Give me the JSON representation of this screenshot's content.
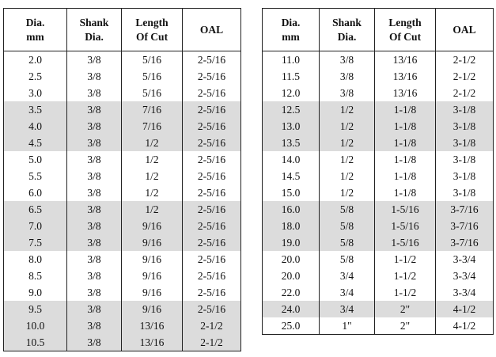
{
  "headers": {
    "dia": [
      "Dia.",
      "mm"
    ],
    "shank": [
      "Shank",
      "Dia."
    ],
    "length": [
      "Length",
      "Of Cut"
    ],
    "oal": [
      "OAL"
    ]
  },
  "left_table": {
    "rows": [
      {
        "dia": "2.0",
        "shank": "3/8",
        "length": "5/16",
        "oal": "2-5/16",
        "shaded": false
      },
      {
        "dia": "2.5",
        "shank": "3/8",
        "length": "5/16",
        "oal": "2-5/16",
        "shaded": false
      },
      {
        "dia": "3.0",
        "shank": "3/8",
        "length": "5/16",
        "oal": "2-5/16",
        "shaded": false
      },
      {
        "dia": "3.5",
        "shank": "3/8",
        "length": "7/16",
        "oal": "2-5/16",
        "shaded": true
      },
      {
        "dia": "4.0",
        "shank": "3/8",
        "length": "7/16",
        "oal": "2-5/16",
        "shaded": true
      },
      {
        "dia": "4.5",
        "shank": "3/8",
        "length": "1/2",
        "oal": "2-5/16",
        "shaded": true
      },
      {
        "dia": "5.0",
        "shank": "3/8",
        "length": "1/2",
        "oal": "2-5/16",
        "shaded": false
      },
      {
        "dia": "5.5",
        "shank": "3/8",
        "length": "1/2",
        "oal": "2-5/16",
        "shaded": false
      },
      {
        "dia": "6.0",
        "shank": "3/8",
        "length": "1/2",
        "oal": "2-5/16",
        "shaded": false
      },
      {
        "dia": "6.5",
        "shank": "3/8",
        "length": "1/2",
        "oal": "2-5/16",
        "shaded": true
      },
      {
        "dia": "7.0",
        "shank": "3/8",
        "length": "9/16",
        "oal": "2-5/16",
        "shaded": true
      },
      {
        "dia": "7.5",
        "shank": "3/8",
        "length": "9/16",
        "oal": "2-5/16",
        "shaded": true
      },
      {
        "dia": "8.0",
        "shank": "3/8",
        "length": "9/16",
        "oal": "2-5/16",
        "shaded": false
      },
      {
        "dia": "8.5",
        "shank": "3/8",
        "length": "9/16",
        "oal": "2-5/16",
        "shaded": false
      },
      {
        "dia": "9.0",
        "shank": "3/8",
        "length": "9/16",
        "oal": "2-5/16",
        "shaded": false
      },
      {
        "dia": "9.5",
        "shank": "3/8",
        "length": "9/16",
        "oal": "2-5/16",
        "shaded": true
      },
      {
        "dia": "10.0",
        "shank": "3/8",
        "length": "13/16",
        "oal": "2-1/2",
        "shaded": true
      },
      {
        "dia": "10.5",
        "shank": "3/8",
        "length": "13/16",
        "oal": "2-1/2",
        "shaded": true
      }
    ]
  },
  "right_table": {
    "rows": [
      {
        "dia": "11.0",
        "shank": "3/8",
        "length": "13/16",
        "oal": "2-1/2",
        "shaded": false
      },
      {
        "dia": "11.5",
        "shank": "3/8",
        "length": "13/16",
        "oal": "2-1/2",
        "shaded": false
      },
      {
        "dia": "12.0",
        "shank": "3/8",
        "length": "13/16",
        "oal": "2-1/2",
        "shaded": false
      },
      {
        "dia": "12.5",
        "shank": "1/2",
        "length": "1-1/8",
        "oal": "3-1/8",
        "shaded": true
      },
      {
        "dia": "13.0",
        "shank": "1/2",
        "length": "1-1/8",
        "oal": "3-1/8",
        "shaded": true
      },
      {
        "dia": "13.5",
        "shank": "1/2",
        "length": "1-1/8",
        "oal": "3-1/8",
        "shaded": true
      },
      {
        "dia": "14.0",
        "shank": "1/2",
        "length": "1-1/8",
        "oal": "3-1/8",
        "shaded": false
      },
      {
        "dia": "14.5",
        "shank": "1/2",
        "length": "1-1/8",
        "oal": "3-1/8",
        "shaded": false
      },
      {
        "dia": "15.0",
        "shank": "1/2",
        "length": "1-1/8",
        "oal": "3-1/8",
        "shaded": false
      },
      {
        "dia": "16.0",
        "shank": "5/8",
        "length": "1-5/16",
        "oal": "3-7/16",
        "shaded": true
      },
      {
        "dia": "18.0",
        "shank": "5/8",
        "length": "1-5/16",
        "oal": "3-7/16",
        "shaded": true
      },
      {
        "dia": "19.0",
        "shank": "5/8",
        "length": "1-5/16",
        "oal": "3-7/16",
        "shaded": true
      },
      {
        "dia": "20.0",
        "shank": "5/8",
        "length": "1-1/2",
        "oal": "3-3/4",
        "shaded": false
      },
      {
        "dia": "20.0",
        "shank": "3/4",
        "length": "1-1/2",
        "oal": "3-3/4",
        "shaded": false
      },
      {
        "dia": "22.0",
        "shank": "3/4",
        "length": "1-1/2",
        "oal": "3-3/4",
        "shaded": false
      },
      {
        "dia": "24.0",
        "shank": "3/4",
        "length": "2\"",
        "oal": "4-1/2",
        "shaded": true
      },
      {
        "dia": "25.0",
        "shank": "1\"",
        "length": "2\"",
        "oal": "4-1/2",
        "shaded": false
      }
    ]
  }
}
